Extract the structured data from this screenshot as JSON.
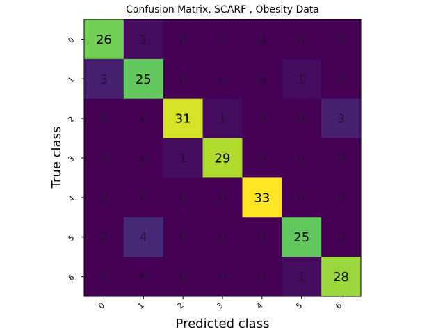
{
  "chart_data": {
    "type": "heatmap",
    "title": "Confusion Matrix, SCARF , Obesity Data",
    "xlabel": "Predicted class",
    "ylabel": "True class",
    "x_tick_labels": [
      "0",
      "1",
      "2",
      "3",
      "4",
      "5",
      "6"
    ],
    "y_tick_labels": [
      "0",
      "1",
      "2",
      "3",
      "4",
      "5",
      "6"
    ],
    "matrix": [
      [
        26,
        1,
        0,
        0,
        0,
        0,
        0
      ],
      [
        3,
        25,
        0,
        0,
        0,
        1,
        0
      ],
      [
        0,
        0,
        31,
        1,
        0,
        0,
        3
      ],
      [
        0,
        0,
        1,
        29,
        0,
        0,
        0
      ],
      [
        0,
        0,
        0,
        0,
        33,
        0,
        0
      ],
      [
        0,
        4,
        0,
        0,
        0,
        25,
        0
      ],
      [
        0,
        0,
        0,
        0,
        0,
        1,
        28
      ]
    ],
    "value_range": [
      0,
      33
    ],
    "colormap": "viridis"
  }
}
